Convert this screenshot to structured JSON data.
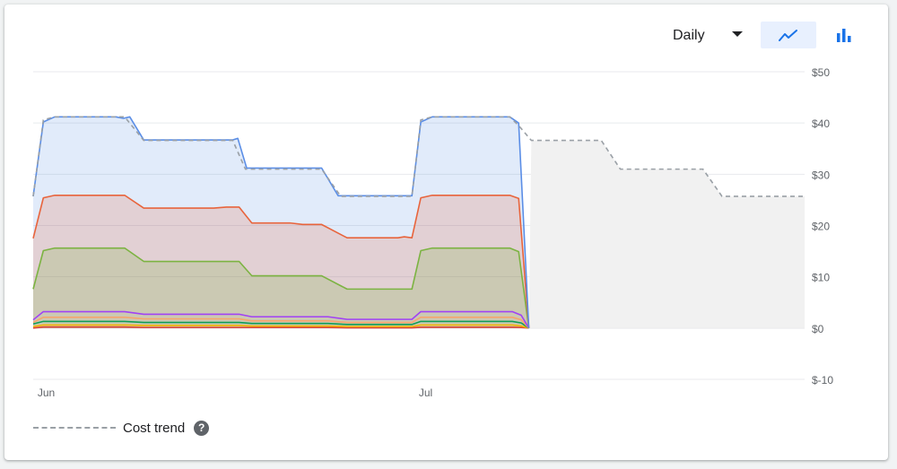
{
  "toolbar": {
    "granularity_value": "Daily",
    "view_options": [
      {
        "name": "line-chart-view",
        "icon": "line-chart-icon",
        "active": true
      },
      {
        "name": "bar-chart-view",
        "icon": "bar-chart-icon",
        "active": false
      }
    ],
    "accent_color": "#1a73e8"
  },
  "legend": {
    "trend_label": "Cost trend",
    "help_icon": "help-circle-icon",
    "help_glyph": "?"
  },
  "chart_data": {
    "type": "area",
    "stacked": true,
    "x_unit": "days",
    "x_tick_labels": [
      {
        "day": 0,
        "label": "Jun"
      },
      {
        "day": 30,
        "label": "Jul"
      }
    ],
    "y_ticks": [
      "$50",
      "$40",
      "$30",
      "$20",
      "$10",
      "$0",
      "$-10"
    ],
    "y_tick_values": [
      50,
      40,
      30,
      20,
      10,
      0,
      -10
    ],
    "ylim": [
      -10,
      50
    ],
    "xlim": [
      -0.2,
      60.5
    ],
    "grid": true,
    "y_axis_side": "right",
    "series": [
      {
        "color": "#db4437",
        "alpha": 0,
        "values": [
          [
            -0.2,
            0
          ],
          [
            0.6,
            0.2
          ],
          [
            7,
            0.2
          ],
          [
            8.5,
            0.1
          ],
          [
            16,
            0.1
          ],
          [
            17,
            0.1
          ],
          [
            23,
            0.1
          ],
          [
            24.5,
            0.05
          ],
          [
            29.6,
            0.05
          ],
          [
            30.3,
            0.15
          ],
          [
            37.5,
            0.15
          ],
          [
            38.2,
            0.1
          ],
          [
            38.8,
            0
          ]
        ]
      },
      {
        "color": "#f4b400",
        "alpha": 0,
        "values": [
          [
            -0.2,
            0.3
          ],
          [
            0.6,
            0.6
          ],
          [
            7,
            0.6
          ],
          [
            8.5,
            0.5
          ],
          [
            16,
            0.5
          ],
          [
            17,
            0.4
          ],
          [
            23,
            0.4
          ],
          [
            24.5,
            0.3
          ],
          [
            29.6,
            0.3
          ],
          [
            30.3,
            0.6
          ],
          [
            37.5,
            0.6
          ],
          [
            38.2,
            0.4
          ],
          [
            38.8,
            0
          ]
        ]
      },
      {
        "color": "#0f9d58",
        "alpha": 0,
        "values": [
          [
            -0.2,
            0.8
          ],
          [
            0.6,
            1.3
          ],
          [
            7,
            1.3
          ],
          [
            8.5,
            1.1
          ],
          [
            16,
            1.1
          ],
          [
            17,
            0.9
          ],
          [
            23,
            0.9
          ],
          [
            24.5,
            0.7
          ],
          [
            29.6,
            0.7
          ],
          [
            30.3,
            1.3
          ],
          [
            37.5,
            1.3
          ],
          [
            38.2,
            1.0
          ],
          [
            38.8,
            0
          ]
        ]
      },
      {
        "color": "#f6a56d",
        "alpha": 0,
        "values": [
          [
            -0.2,
            1.1
          ],
          [
            0.6,
            2.1
          ],
          [
            7,
            2.1
          ],
          [
            8.5,
            1.8
          ],
          [
            16,
            1.8
          ],
          [
            17,
            1.4
          ],
          [
            23,
            1.4
          ],
          [
            24.5,
            1.1
          ],
          [
            29.6,
            1.1
          ],
          [
            30.3,
            2.1
          ],
          [
            37.5,
            2.1
          ],
          [
            38.2,
            1.6
          ],
          [
            38.8,
            0
          ]
        ]
      },
      {
        "color": "#a142f4",
        "alpha": 0,
        "values": [
          [
            -0.2,
            1.6
          ],
          [
            0.6,
            3.2
          ],
          [
            7,
            3.2
          ],
          [
            8.5,
            2.7
          ],
          [
            16,
            2.7
          ],
          [
            17,
            2.2
          ],
          [
            23,
            2.2
          ],
          [
            24.5,
            1.7
          ],
          [
            29.6,
            1.7
          ],
          [
            30.3,
            3.2
          ],
          [
            37.5,
            3.2
          ],
          [
            38.2,
            2.5
          ],
          [
            38.8,
            0
          ]
        ]
      },
      {
        "color": "#7cb342",
        "alpha": 0.22,
        "values": [
          [
            -0.2,
            7.6
          ],
          [
            0.6,
            15.1
          ],
          [
            1.5,
            15.6
          ],
          [
            7,
            15.6
          ],
          [
            8.5,
            13.0
          ],
          [
            16,
            13.0
          ],
          [
            17,
            10.2
          ],
          [
            22.5,
            10.2
          ],
          [
            24.5,
            7.6
          ],
          [
            29.6,
            7.6
          ],
          [
            30.3,
            15.1
          ],
          [
            31.2,
            15.6
          ],
          [
            37.3,
            15.6
          ],
          [
            38.0,
            14.9
          ],
          [
            38.8,
            0
          ]
        ]
      },
      {
        "color": "#e8643c",
        "alpha": 0.2,
        "values": [
          [
            -0.2,
            17.5
          ],
          [
            0.6,
            25.4
          ],
          [
            1.5,
            25.9
          ],
          [
            7,
            25.9
          ],
          [
            8.5,
            23.4
          ],
          [
            14,
            23.4
          ],
          [
            15,
            23.6
          ],
          [
            16,
            23.6
          ],
          [
            17,
            20.5
          ],
          [
            20,
            20.5
          ],
          [
            21,
            20.2
          ],
          [
            22.5,
            20.2
          ],
          [
            24.5,
            17.6
          ],
          [
            28.5,
            17.6
          ],
          [
            29,
            17.8
          ],
          [
            29.6,
            17.6
          ],
          [
            30.3,
            25.4
          ],
          [
            31.2,
            25.9
          ],
          [
            37.3,
            25.9
          ],
          [
            38.0,
            25.3
          ],
          [
            38.8,
            0
          ]
        ]
      },
      {
        "color": "#5b8ee6",
        "alpha": 0.18,
        "values": [
          [
            -0.2,
            25.7
          ],
          [
            0.6,
            40.2
          ],
          [
            1.5,
            41.2
          ],
          [
            6.3,
            41.2
          ],
          [
            6.9,
            40.9
          ],
          [
            7.4,
            41.2
          ],
          [
            8.5,
            36.7
          ],
          [
            15.5,
            36.7
          ],
          [
            15.9,
            37.0
          ],
          [
            16.6,
            31.2
          ],
          [
            22.5,
            31.2
          ],
          [
            23.8,
            25.8
          ],
          [
            29.6,
            25.8
          ],
          [
            30.3,
            40.2
          ],
          [
            31.2,
            41.2
          ],
          [
            37.3,
            41.2
          ],
          [
            38.0,
            40.0
          ],
          [
            38.8,
            0
          ]
        ]
      }
    ],
    "cost_trend": {
      "color": "#9aa0a6",
      "fill": "#f1f1f1",
      "values": [
        [
          -0.2,
          25.7
        ],
        [
          0.6,
          40.6
        ],
        [
          1.5,
          41.2
        ],
        [
          7,
          41.2
        ],
        [
          8.5,
          36.6
        ],
        [
          15.5,
          36.6
        ],
        [
          16.5,
          31.0
        ],
        [
          22.5,
          31.0
        ],
        [
          24,
          25.7
        ],
        [
          29.6,
          25.7
        ],
        [
          30.3,
          40.6
        ],
        [
          31.2,
          41.2
        ],
        [
          37.3,
          41.2
        ],
        [
          38.0,
          39.5
        ],
        [
          39.0,
          36.6
        ],
        [
          44.5,
          36.6
        ],
        [
          46,
          31.0
        ],
        [
          52.5,
          31.0
        ],
        [
          54,
          25.7
        ],
        [
          60.5,
          25.7
        ]
      ]
    },
    "forecast_start_day": 38.8
  }
}
